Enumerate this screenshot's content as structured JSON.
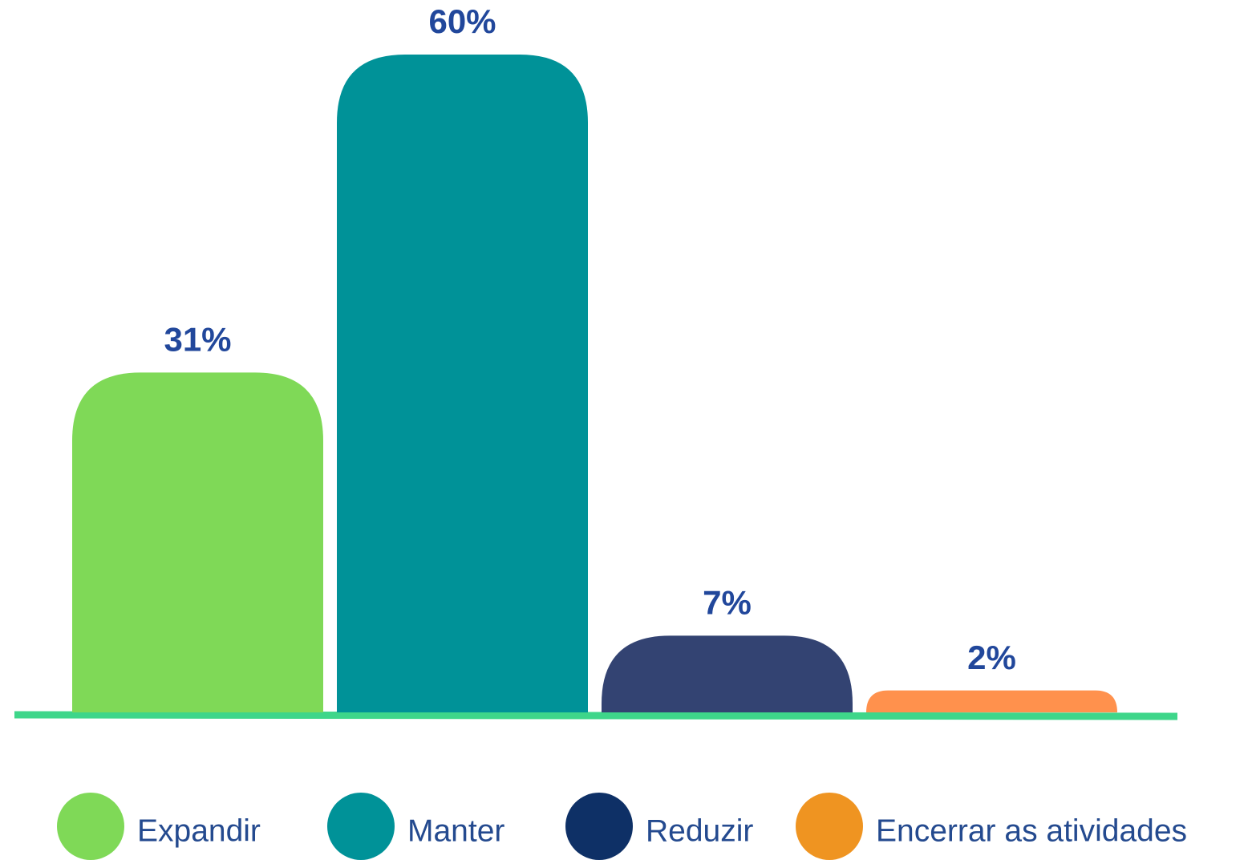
{
  "chart_data": {
    "type": "bar",
    "categories": [
      "Expandir",
      "Manter",
      "Reduzir",
      "Encerrar as atividades"
    ],
    "values": [
      31,
      60,
      7,
      2
    ],
    "value_labels": [
      "31%",
      "60%",
      "7%",
      "2%"
    ],
    "colors": [
      "#7fd957",
      "#009298",
      "#334372",
      "#ff914d"
    ],
    "legend_colors": [
      "#7fd957",
      "#009298",
      "#0e3066",
      "#ef9421"
    ],
    "legend": "bottom"
  }
}
